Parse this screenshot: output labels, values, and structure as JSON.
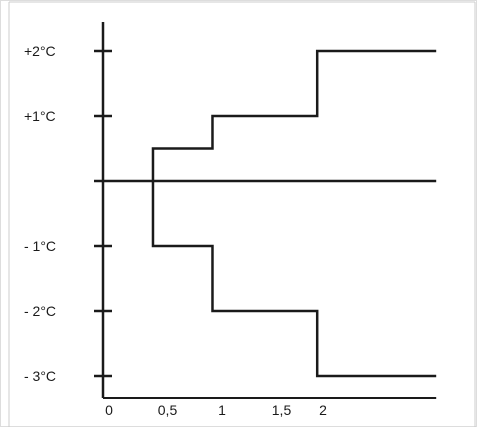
{
  "chart_data": {
    "type": "line",
    "title": "",
    "xlabel": "",
    "ylabel": "",
    "x_ticks": [
      "0",
      "0,5",
      "1",
      "1,5",
      "2"
    ],
    "y_ticks": [
      {
        "value": 2,
        "label": "+2°C"
      },
      {
        "value": 1,
        "label": "+1°C"
      },
      {
        "value": -1,
        "label": "- 1°C"
      },
      {
        "value": -2,
        "label": "- 2°C"
      },
      {
        "value": -3,
        "label": "- 3°C"
      }
    ],
    "xlim": [
      0,
      2.8
    ],
    "ylim": [
      -3.35,
      2.5
    ],
    "grid": false,
    "series": [
      {
        "step": "post",
        "color": "#1a1a1a",
        "points": [
          [
            0.42,
            0.5
          ],
          [
            0.92,
            1
          ],
          [
            1.8,
            2
          ],
          [
            2.8,
            2
          ]
        ]
      },
      {
        "step": "post",
        "color": "#1a1a1a",
        "points": [
          [
            0.42,
            -1
          ],
          [
            0.92,
            -2
          ],
          [
            1.8,
            -3
          ],
          [
            2.8,
            -3
          ]
        ]
      },
      {
        "step": "none",
        "color": "#1a1a1a",
        "points": [
          [
            0,
            0
          ],
          [
            2.8,
            0
          ]
        ]
      }
    ]
  }
}
